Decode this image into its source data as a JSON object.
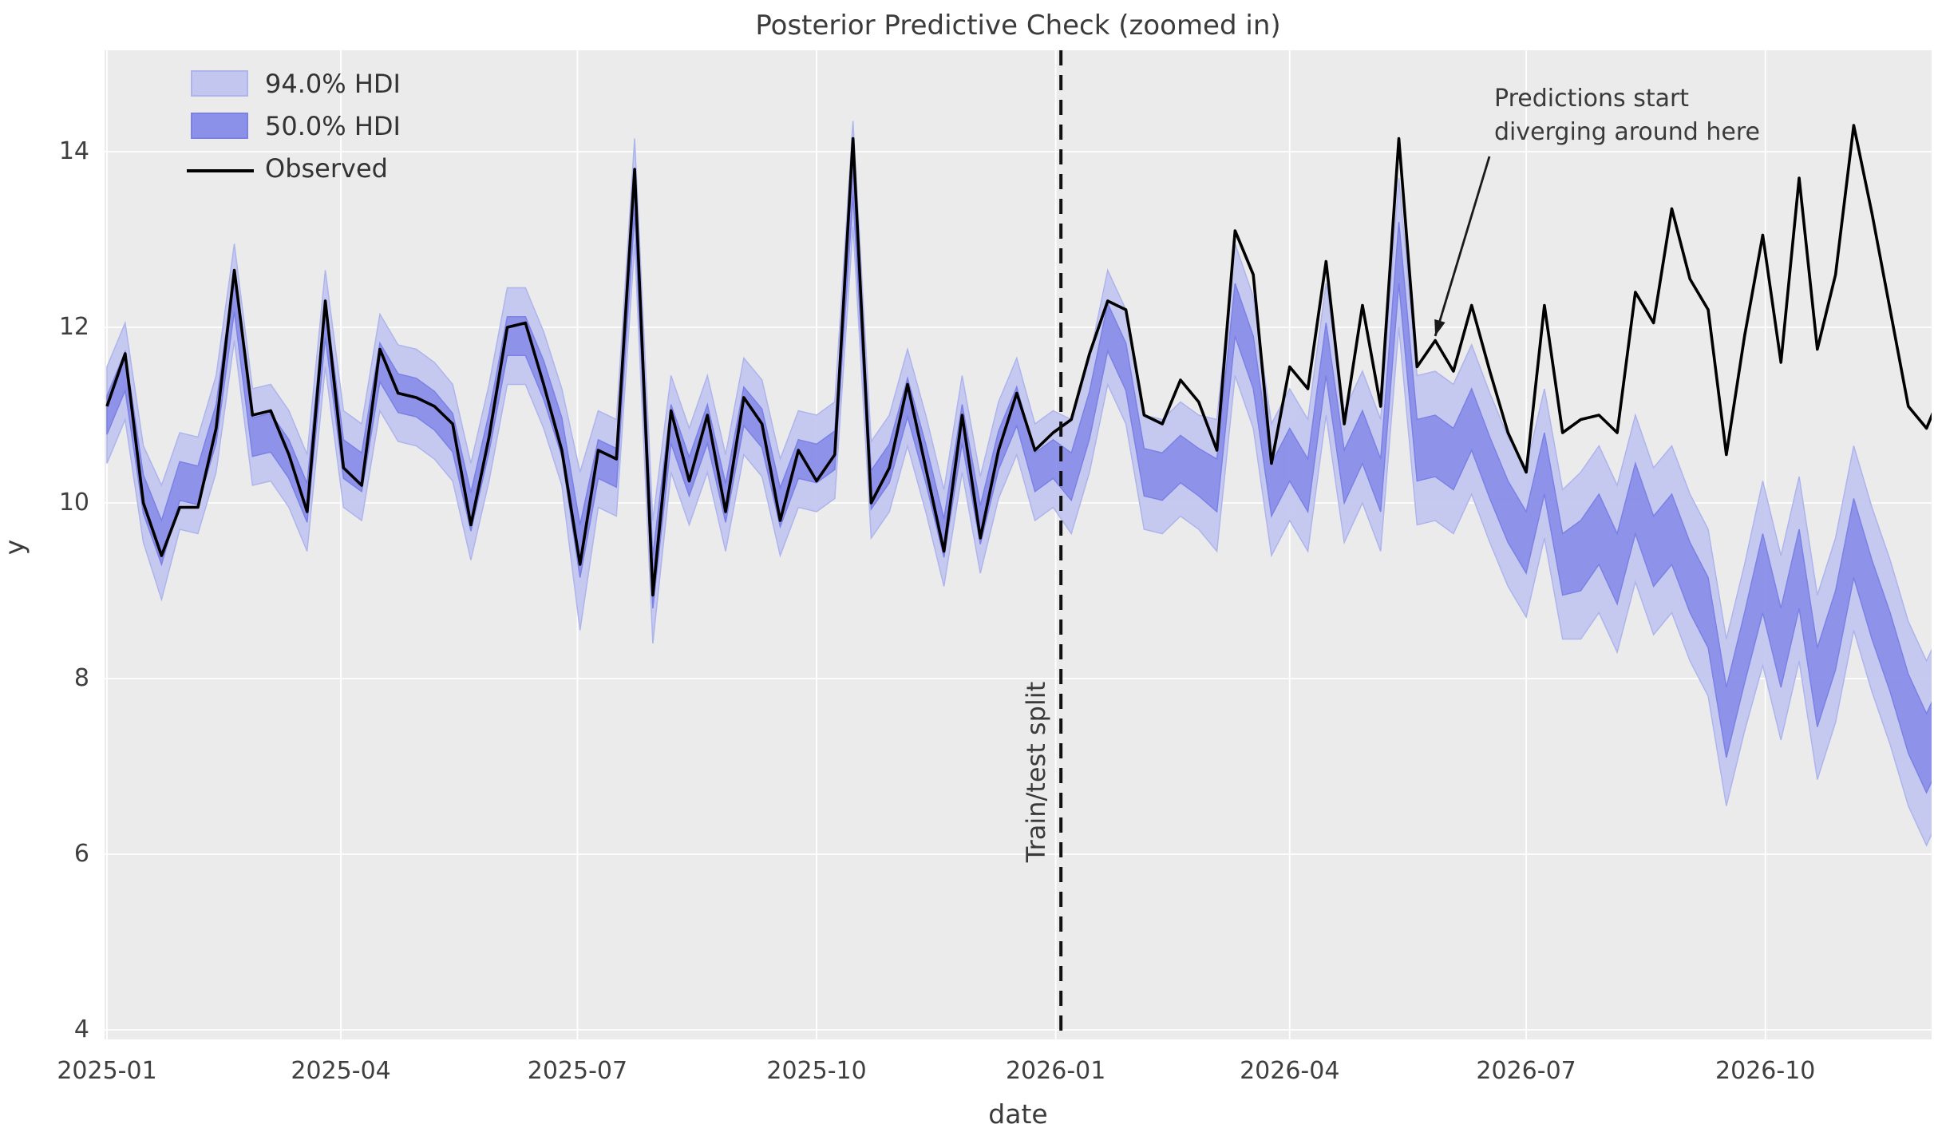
{
  "page": {
    "title": "Posterior Predictive Check (zoomed in)"
  },
  "colors": {
    "panel_bg": "#ebebeb",
    "grid": "#ffffff",
    "hdi94_fill": "#c3c7f0",
    "hdi94_edge": "#aeb4ec",
    "hdi50_fill": "#8b90e8",
    "hdi50_edge": "#7b81e5",
    "observed_line": "#000000",
    "split_line": "#111111",
    "annotation_arrow": "#1a1a1a",
    "text": "#3b3b3b"
  },
  "chart_data": {
    "type": "line",
    "title": "Posterior Predictive Check (zoomed in)",
    "xlabel": "date",
    "ylabel": "y",
    "grid": true,
    "legend_position": "upper left",
    "legend": [
      {
        "label": "94.0% HDI",
        "kind": "band"
      },
      {
        "label": "50.0% HDI",
        "kind": "band"
      },
      {
        "label": "Observed",
        "kind": "line"
      }
    ],
    "x_tick_labels": [
      "2025-01",
      "2025-04",
      "2025-07",
      "2025-10",
      "2026-01",
      "2026-04",
      "2026-07",
      "2026-10"
    ],
    "x_tick_dates": [
      "2025-01-01",
      "2025-04-01",
      "2025-07-01",
      "2025-10-01",
      "2026-01-01",
      "2026-04-01",
      "2026-07-01",
      "2026-10-01"
    ],
    "y_tick_labels": [
      "14",
      "12",
      "10",
      "8",
      "6",
      "4"
    ],
    "y_tick_values": [
      14,
      12,
      10,
      8,
      6,
      4
    ],
    "ylim": [
      3.89,
      15.15
    ],
    "xlim": [
      "2024-12-31",
      "2026-12-11"
    ],
    "split_date": "2026-01-03",
    "split_label": "Train/test split",
    "annotation": {
      "line1": "Predictions start",
      "line2": "diverging around here",
      "arrow_tip_date": "2026-05-27",
      "arrow_tip_y": 11.9
    },
    "dates": [
      "2025-01-01",
      "2025-01-08",
      "2025-01-15",
      "2025-01-22",
      "2025-01-29",
      "2025-02-05",
      "2025-02-12",
      "2025-02-19",
      "2025-02-26",
      "2025-03-05",
      "2025-03-12",
      "2025-03-19",
      "2025-03-26",
      "2025-04-02",
      "2025-04-09",
      "2025-04-16",
      "2025-04-23",
      "2025-04-30",
      "2025-05-07",
      "2025-05-14",
      "2025-05-21",
      "2025-05-28",
      "2025-06-04",
      "2025-06-11",
      "2025-06-18",
      "2025-06-25",
      "2025-07-02",
      "2025-07-09",
      "2025-07-16",
      "2025-07-23",
      "2025-07-30",
      "2025-08-06",
      "2025-08-13",
      "2025-08-20",
      "2025-08-27",
      "2025-09-03",
      "2025-09-10",
      "2025-09-17",
      "2025-09-24",
      "2025-10-01",
      "2025-10-08",
      "2025-10-15",
      "2025-10-22",
      "2025-10-29",
      "2025-11-05",
      "2025-11-12",
      "2025-11-19",
      "2025-11-26",
      "2025-12-03",
      "2025-12-10",
      "2025-12-17",
      "2025-12-24",
      "2025-12-31",
      "2026-01-07",
      "2026-01-14",
      "2026-01-21",
      "2026-01-28",
      "2026-02-04",
      "2026-02-11",
      "2026-02-18",
      "2026-02-25",
      "2026-03-04",
      "2026-03-11",
      "2026-03-18",
      "2026-03-25",
      "2026-04-01",
      "2026-04-08",
      "2026-04-15",
      "2026-04-22",
      "2026-04-29",
      "2026-05-06",
      "2026-05-13",
      "2026-05-20",
      "2026-05-27",
      "2026-06-03",
      "2026-06-10",
      "2026-06-17",
      "2026-06-24",
      "2026-07-01",
      "2026-07-08",
      "2026-07-15",
      "2026-07-22",
      "2026-07-29",
      "2026-08-05",
      "2026-08-12",
      "2026-08-19",
      "2026-08-26",
      "2026-09-02",
      "2026-09-09",
      "2026-09-16",
      "2026-09-23",
      "2026-09-30",
      "2026-10-07",
      "2026-10-14",
      "2026-10-21",
      "2026-10-28",
      "2026-11-04",
      "2026-11-11",
      "2026-11-18",
      "2026-11-25",
      "2026-12-02",
      "2026-12-09"
    ],
    "observed": [
      11.1,
      11.7,
      10.0,
      9.4,
      9.95,
      9.95,
      10.85,
      12.65,
      11.0,
      11.05,
      10.55,
      9.9,
      12.3,
      10.4,
      10.2,
      11.75,
      11.25,
      11.2,
      11.1,
      10.9,
      9.75,
      10.75,
      12.0,
      12.05,
      11.35,
      10.6,
      9.3,
      10.6,
      10.5,
      13.8,
      8.95,
      11.05,
      10.25,
      11.0,
      9.9,
      11.2,
      10.9,
      9.8,
      10.6,
      10.25,
      10.55,
      14.15,
      10.0,
      10.4,
      11.35,
      10.4,
      9.45,
      11.0,
      9.6,
      10.6,
      11.25,
      10.6,
      10.8,
      10.95,
      11.7,
      12.3,
      12.2,
      11.0,
      10.9,
      11.4,
      11.15,
      10.6,
      13.1,
      12.6,
      10.45,
      11.55,
      11.3,
      12.75,
      10.9,
      12.25,
      11.1,
      14.15,
      11.55,
      11.85,
      11.5,
      12.25,
      11.5,
      10.8,
      10.35,
      12.25,
      10.8,
      10.95,
      11.0,
      10.8,
      12.4,
      12.05,
      13.35,
      12.55,
      12.2,
      10.55,
      11.9,
      13.05,
      11.6,
      13.7,
      11.75,
      12.6,
      14.3,
      13.3,
      12.2,
      11.1,
      10.85,
      11.35
    ],
    "pred_median": [
      11.0,
      11.5,
      10.1,
      9.55,
      10.25,
      10.2,
      10.9,
      12.4,
      10.75,
      10.8,
      10.5,
      10.0,
      12.1,
      10.5,
      10.35,
      11.6,
      11.25,
      11.2,
      11.05,
      10.8,
      9.9,
      10.8,
      11.9,
      11.9,
      11.4,
      10.75,
      9.45,
      10.5,
      10.4,
      13.55,
      9.1,
      10.9,
      10.3,
      10.9,
      10.0,
      11.1,
      10.85,
      9.95,
      10.5,
      10.45,
      10.6,
      13.75,
      10.15,
      10.45,
      11.2,
      10.45,
      9.6,
      10.9,
      9.75,
      10.6,
      11.1,
      10.35,
      10.5,
      10.3,
      11.0,
      12.0,
      11.55,
      10.35,
      10.3,
      10.5,
      10.35,
      10.2,
      12.2,
      11.6,
      10.15,
      10.55,
      10.2,
      11.75,
      10.3,
      10.75,
      10.2,
      12.85,
      10.6,
      10.65,
      10.5,
      10.95,
      10.4,
      9.9,
      9.55,
      10.45,
      9.3,
      9.4,
      9.7,
      9.25,
      10.05,
      9.45,
      9.7,
      9.15,
      8.75,
      7.5,
      8.35,
      9.2,
      8.35,
      9.25,
      7.9,
      8.55,
      9.6,
      8.9,
      8.3,
      7.6,
      7.15,
      7.6
    ],
    "hdi50_halfwidth": [
      0.22,
      0.22,
      0.22,
      0.25,
      0.22,
      0.22,
      0.22,
      0.22,
      0.22,
      0.22,
      0.22,
      0.22,
      0.22,
      0.22,
      0.22,
      0.22,
      0.22,
      0.22,
      0.22,
      0.22,
      0.22,
      0.22,
      0.22,
      0.22,
      0.22,
      0.22,
      0.3,
      0.22,
      0.22,
      0.25,
      0.3,
      0.22,
      0.22,
      0.22,
      0.22,
      0.22,
      0.22,
      0.22,
      0.22,
      0.22,
      0.22,
      0.25,
      0.22,
      0.22,
      0.22,
      0.22,
      0.22,
      0.22,
      0.22,
      0.22,
      0.22,
      0.22,
      0.22,
      0.27,
      0.27,
      0.27,
      0.27,
      0.27,
      0.27,
      0.27,
      0.27,
      0.3,
      0.3,
      0.3,
      0.3,
      0.3,
      0.3,
      0.3,
      0.3,
      0.3,
      0.3,
      0.35,
      0.35,
      0.35,
      0.35,
      0.35,
      0.35,
      0.35,
      0.35,
      0.35,
      0.35,
      0.4,
      0.4,
      0.4,
      0.4,
      0.4,
      0.4,
      0.4,
      0.4,
      0.4,
      0.4,
      0.45,
      0.45,
      0.45,
      0.45,
      0.45,
      0.45,
      0.45,
      0.45,
      0.45,
      0.45,
      0.45
    ],
    "hdi94_halfwidth": [
      0.55,
      0.55,
      0.55,
      0.65,
      0.55,
      0.55,
      0.55,
      0.55,
      0.55,
      0.55,
      0.55,
      0.55,
      0.55,
      0.55,
      0.55,
      0.55,
      0.55,
      0.55,
      0.55,
      0.55,
      0.55,
      0.55,
      0.55,
      0.55,
      0.55,
      0.55,
      0.9,
      0.55,
      0.55,
      0.6,
      0.7,
      0.55,
      0.55,
      0.55,
      0.55,
      0.55,
      0.55,
      0.55,
      0.55,
      0.55,
      0.55,
      0.6,
      0.55,
      0.55,
      0.55,
      0.55,
      0.55,
      0.55,
      0.55,
      0.55,
      0.55,
      0.55,
      0.55,
      0.65,
      0.65,
      0.65,
      0.65,
      0.65,
      0.65,
      0.65,
      0.65,
      0.75,
      0.75,
      0.75,
      0.75,
      0.75,
      0.75,
      0.75,
      0.75,
      0.75,
      0.75,
      0.85,
      0.85,
      0.85,
      0.85,
      0.85,
      0.85,
      0.85,
      0.85,
      0.85,
      0.85,
      0.95,
      0.95,
      0.95,
      0.95,
      0.95,
      0.95,
      0.95,
      0.95,
      0.95,
      0.95,
      1.05,
      1.05,
      1.05,
      1.05,
      1.05,
      1.05,
      1.05,
      1.05,
      1.05,
      1.05,
      1.05
    ]
  }
}
